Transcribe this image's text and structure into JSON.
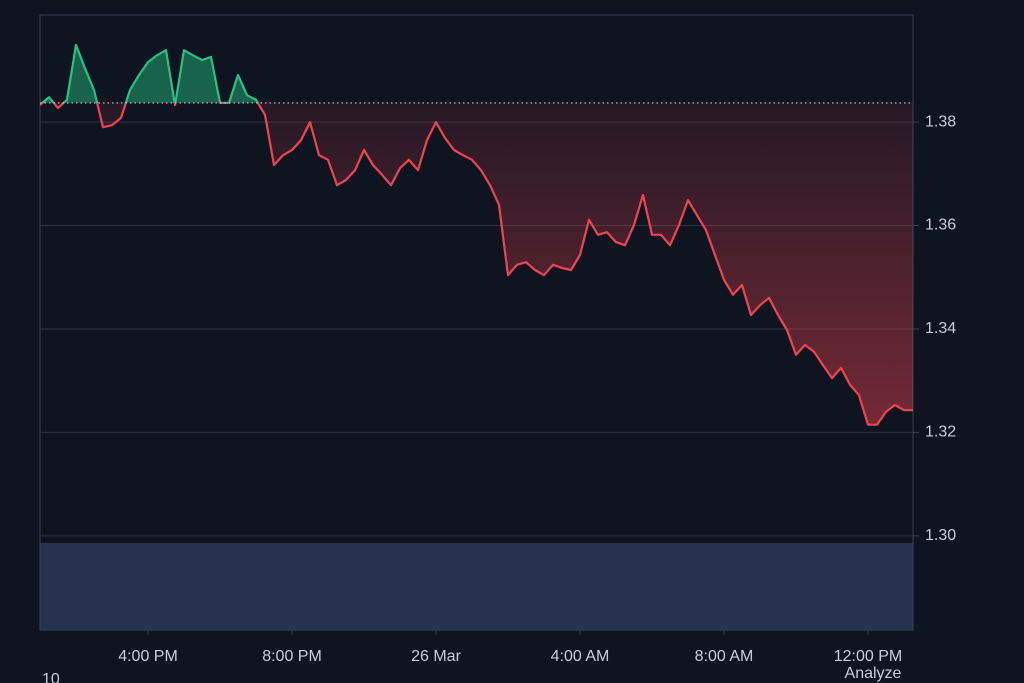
{
  "chart_data": {
    "type": "line",
    "x": [
      "25 Mar 13:00",
      "25 Mar 13:15",
      "25 Mar 13:30",
      "25 Mar 13:45",
      "25 Mar 14:00",
      "25 Mar 14:15",
      "25 Mar 14:30",
      "25 Mar 14:45",
      "25 Mar 15:00",
      "25 Mar 15:15",
      "25 Mar 15:30",
      "25 Mar 15:45",
      "25 Mar 16:00",
      "25 Mar 16:15",
      "25 Mar 16:30",
      "25 Mar 16:45",
      "25 Mar 17:00",
      "25 Mar 17:15",
      "25 Mar 17:30",
      "25 Mar 17:45",
      "25 Mar 18:00",
      "25 Mar 18:15",
      "25 Mar 18:30",
      "25 Mar 18:45",
      "25 Mar 19:00",
      "25 Mar 19:15",
      "25 Mar 19:30",
      "25 Mar 19:45",
      "25 Mar 20:00",
      "25 Mar 20:15",
      "25 Mar 20:30",
      "25 Mar 20:45",
      "25 Mar 21:00",
      "25 Mar 21:15",
      "25 Mar 21:30",
      "25 Mar 21:45",
      "25 Mar 22:00",
      "25 Mar 22:15",
      "25 Mar 22:30",
      "25 Mar 22:45",
      "25 Mar 23:00",
      "25 Mar 23:15",
      "25 Mar 23:30",
      "25 Mar 23:45",
      "26 Mar 00:00",
      "26 Mar 00:15",
      "26 Mar 00:30",
      "26 Mar 00:45",
      "26 Mar 01:00",
      "26 Mar 01:15",
      "26 Mar 01:30",
      "26 Mar 01:45",
      "26 Mar 02:00",
      "26 Mar 02:15",
      "26 Mar 02:30",
      "26 Mar 02:45",
      "26 Mar 03:00",
      "26 Mar 03:15",
      "26 Mar 03:30",
      "26 Mar 03:45",
      "26 Mar 04:00",
      "26 Mar 04:15",
      "26 Mar 04:30",
      "26 Mar 04:45",
      "26 Mar 05:00",
      "26 Mar 05:15",
      "26 Mar 05:30",
      "26 Mar 05:45",
      "26 Mar 06:00",
      "26 Mar 06:15",
      "26 Mar 06:30",
      "26 Mar 06:45",
      "26 Mar 07:00",
      "26 Mar 07:15",
      "26 Mar 07:30",
      "26 Mar 07:45",
      "26 Mar 08:00",
      "26 Mar 08:15",
      "26 Mar 08:30",
      "26 Mar 08:45",
      "26 Mar 09:00",
      "26 Mar 09:15",
      "26 Mar 09:30",
      "26 Mar 09:45",
      "26 Mar 10:00",
      "26 Mar 10:15",
      "26 Mar 10:30",
      "26 Mar 10:45",
      "26 Mar 11:00",
      "26 Mar 11:15",
      "26 Mar 11:30",
      "26 Mar 11:45",
      "26 Mar 12:00",
      "26 Mar 12:15",
      "26 Mar 12:30",
      "26 Mar 12:45",
      "26 Mar 13:00",
      "26 Mar 13:15"
    ],
    "values": [
      1.3833,
      1.3848,
      1.3827,
      1.3843,
      1.3949,
      1.3904,
      1.3862,
      1.379,
      1.3794,
      1.3808,
      1.3862,
      1.3891,
      1.3916,
      1.3929,
      1.3939,
      1.3833,
      1.3939,
      1.3929,
      1.392,
      1.3926,
      1.3837,
      1.3837,
      1.3891,
      1.3852,
      1.3843,
      1.3814,
      1.3717,
      1.3736,
      1.3746,
      1.3765,
      1.38,
      1.3736,
      1.3727,
      1.3678,
      1.3688,
      1.3707,
      1.3746,
      1.3717,
      1.3698,
      1.3678,
      1.3711,
      1.3727,
      1.3707,
      1.3765,
      1.38,
      1.3769,
      1.3746,
      1.3736,
      1.3727,
      1.3707,
      1.3678,
      1.364,
      1.3504,
      1.3524,
      1.3529,
      1.3514,
      1.3504,
      1.3524,
      1.3518,
      1.3514,
      1.3543,
      1.3611,
      1.3582,
      1.3587,
      1.3568,
      1.3562,
      1.3601,
      1.3659,
      1.3582,
      1.3582,
      1.3562,
      1.3601,
      1.3649,
      1.362,
      1.3591,
      1.3543,
      1.3495,
      1.3466,
      1.3485,
      1.3427,
      1.3446,
      1.346,
      1.3427,
      1.3398,
      1.335,
      1.3369,
      1.3356,
      1.333,
      1.3305,
      1.3325,
      1.3292,
      1.3272,
      1.3215,
      1.3215,
      1.324,
      1.3253,
      1.3243,
      1.3243
    ],
    "baseline": 1.3837,
    "up_color": "#26c281",
    "down_color": "#ef4450",
    "xlim": [
      "25 Mar 13:00",
      "26 Mar 13:15"
    ],
    "xticks": [
      {
        "value": "25 Mar 16:00",
        "label": "4:00 PM"
      },
      {
        "value": "25 Mar 20:00",
        "label": "8:00 PM"
      },
      {
        "value": "26 Mar 00:00",
        "label": "26 Mar"
      },
      {
        "value": "26 Mar 04:00",
        "label": "4:00 AM"
      },
      {
        "value": "26 Mar 08:00",
        "label": "8:00 AM"
      },
      {
        "value": "26 Mar 12:00",
        "label": "12:00 PM"
      }
    ],
    "ylim": [
      1.2818,
      1.4007
    ],
    "yticks": [
      {
        "value": 1.3,
        "label": "1.30"
      },
      1.32,
      1.34,
      1.36,
      1.38
    ],
    "grid": true,
    "annotations": [
      "10",
      "Analyze"
    ]
  }
}
